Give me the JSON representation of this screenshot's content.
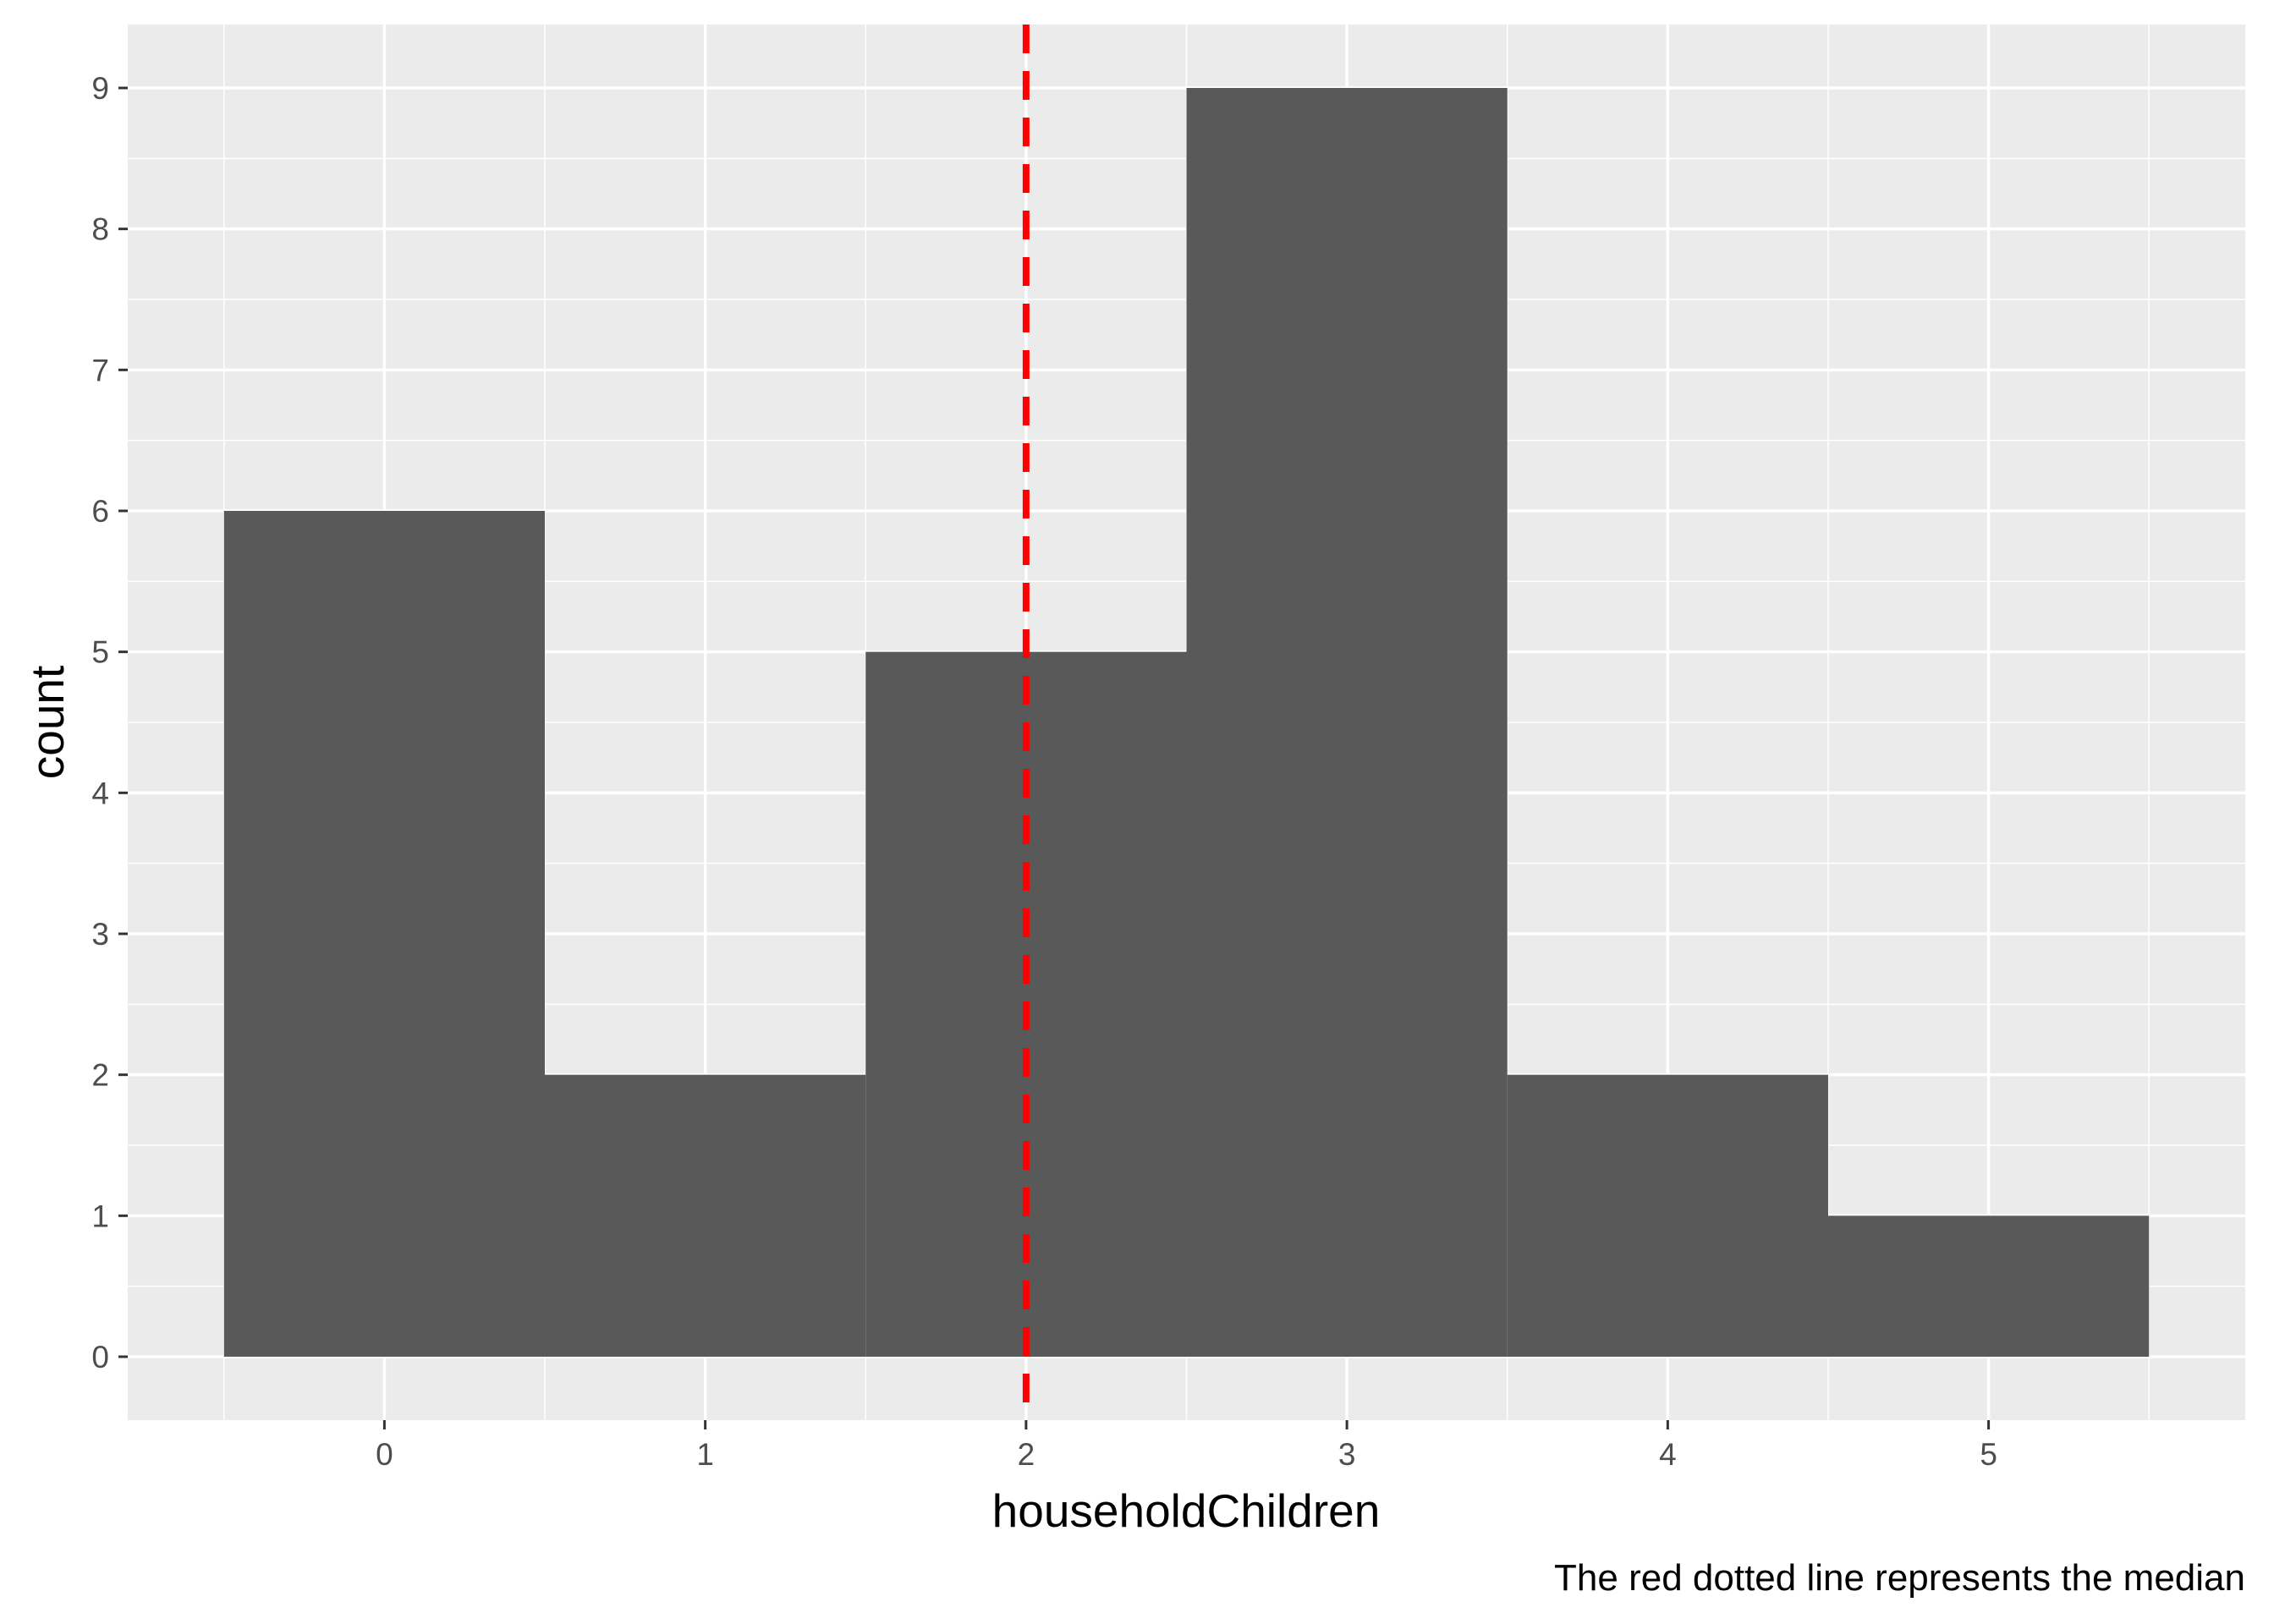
{
  "chart_data": {
    "type": "bar",
    "subtype": "histogram",
    "x": [
      0,
      1,
      2,
      3,
      4,
      5
    ],
    "values": [
      6,
      2,
      5,
      9,
      2,
      1
    ],
    "bin_width": 1,
    "xlabel": "householdChildren",
    "ylabel": "count",
    "xticks": [
      "0",
      "1",
      "2",
      "3",
      "4",
      "5"
    ],
    "yticks": [
      "0",
      "1",
      "2",
      "3",
      "4",
      "5",
      "6",
      "7",
      "8",
      "9"
    ],
    "xlim": [
      -0.8,
      5.8
    ],
    "ylim": [
      -0.45,
      9.45
    ],
    "grid": true,
    "bar_color": "#595959",
    "panel_background": "#ebebeb",
    "reference_line": {
      "x": 2,
      "color": "#ff0000",
      "style": "dashed"
    },
    "caption": "The red dotted line represents the median"
  }
}
